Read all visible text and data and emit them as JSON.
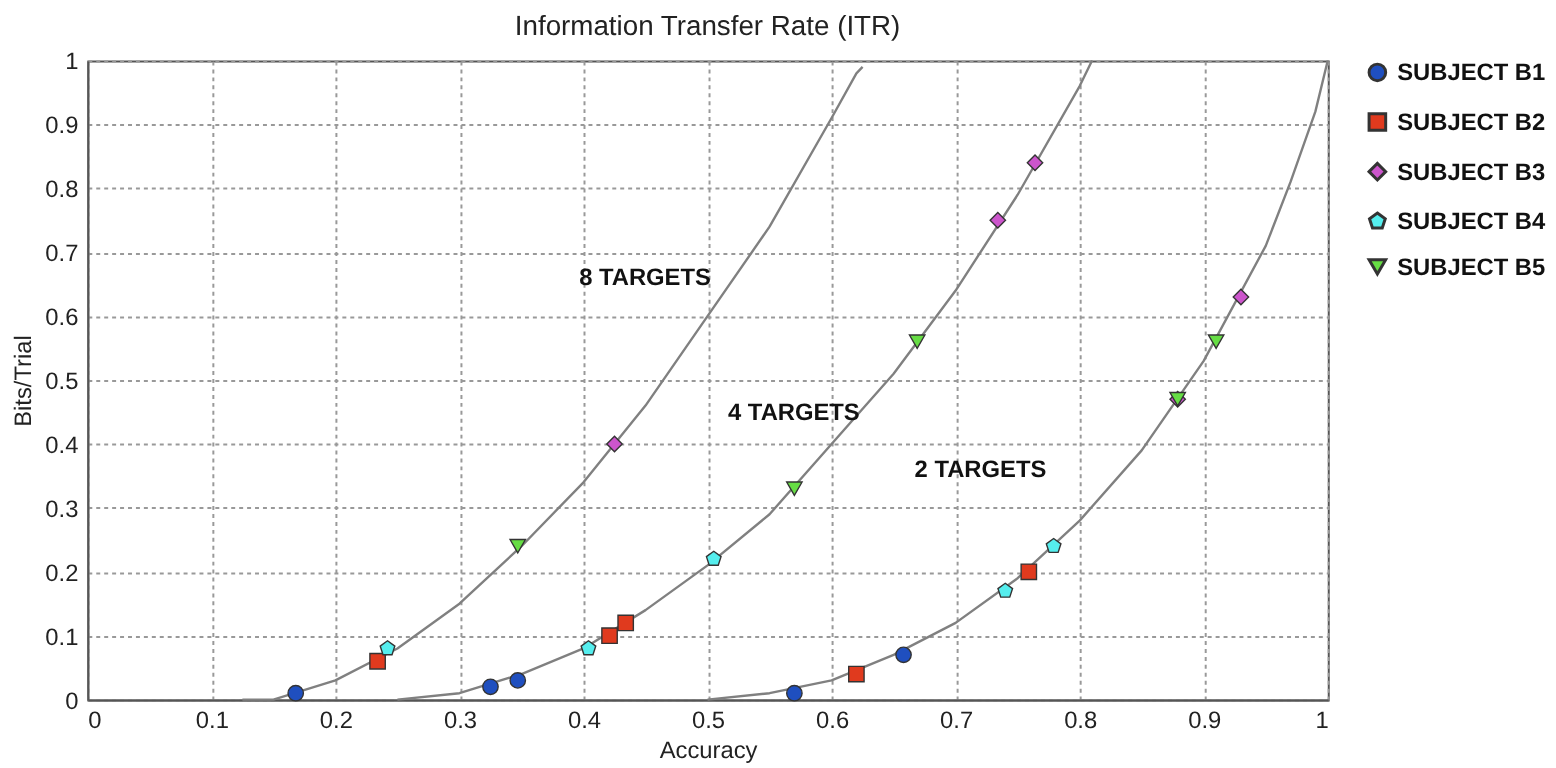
{
  "chart_data": {
    "type": "scatter",
    "title": "Information Transfer Rate (ITR)",
    "xlabel": "Accuracy",
    "ylabel": "Bits/Trial",
    "xlim": [
      0,
      1
    ],
    "ylim": [
      0,
      1
    ],
    "xticks": [
      0,
      0.1,
      0.2,
      0.3,
      0.4,
      0.5,
      0.6,
      0.7,
      0.8,
      0.9,
      1
    ],
    "yticks": [
      0,
      0.1,
      0.2,
      0.3,
      0.4,
      0.5,
      0.6,
      0.7,
      0.8,
      0.9,
      1
    ],
    "grid": true,
    "legend": "right",
    "annotations": [
      "8 TARGETS",
      "4 TARGETS",
      "2 TARGETS"
    ],
    "series": [
      {
        "type": "line",
        "color": "#808080",
        "marker": "none",
        "line_style": "solid",
        "x": [
          0.125,
          0.15,
          0.2,
          0.25,
          0.3,
          0.35,
          0.4,
          0.45,
          0.5,
          0.55,
          0.6,
          0.62,
          0.625
        ],
        "values": [
          0.0,
          0.0,
          0.03,
          0.08,
          0.15,
          0.24,
          0.34,
          0.46,
          0.6,
          0.74,
          0.91,
          0.98,
          0.99
        ]
      },
      {
        "type": "line",
        "color": "#808080",
        "marker": "none",
        "line_style": "solid",
        "x": [
          0.25,
          0.3,
          0.35,
          0.4,
          0.45,
          0.5,
          0.55,
          0.6,
          0.65,
          0.7,
          0.75,
          0.8,
          0.81
        ],
        "values": [
          0.0,
          0.01,
          0.04,
          0.08,
          0.14,
          0.21,
          0.29,
          0.4,
          0.51,
          0.64,
          0.79,
          0.96,
          1.0
        ]
      },
      {
        "type": "line",
        "color": "#808080",
        "marker": "none",
        "line_style": "solid",
        "x": [
          0.5,
          0.55,
          0.6,
          0.65,
          0.7,
          0.75,
          0.8,
          0.85,
          0.9,
          0.95,
          0.97,
          0.99,
          1.0
        ],
        "values": [
          0.0,
          0.01,
          0.03,
          0.07,
          0.12,
          0.19,
          0.28,
          0.39,
          0.53,
          0.71,
          0.81,
          0.92,
          1.0
        ]
      },
      {
        "name": "SUBJECT B1",
        "color": "#1f4fbf",
        "marker": "circle",
        "x": [
          0.168,
          0.325,
          0.347,
          0.57,
          0.658
        ],
        "values": [
          0.01,
          0.02,
          0.03,
          0.01,
          0.07
        ]
      },
      {
        "name": "SUBJECT B2",
        "color": "#e03a1e",
        "marker": "square",
        "x": [
          0.234,
          0.421,
          0.434,
          0.62,
          0.759
        ],
        "values": [
          0.06,
          0.1,
          0.12,
          0.04,
          0.2
        ]
      },
      {
        "name": "SUBJECT B3",
        "color": "#cc55cc",
        "marker": "diamond",
        "x": [
          0.425,
          0.734,
          0.764,
          0.879,
          0.93
        ],
        "values": [
          0.4,
          0.75,
          0.84,
          0.47,
          0.63
        ]
      },
      {
        "name": "SUBJECT B4",
        "color": "#55eeee",
        "x": [
          0.242,
          0.404,
          0.505,
          0.74,
          0.779
        ],
        "values": [
          0.08,
          0.08,
          0.22,
          0.17,
          0.24
        ]
      },
      {
        "name": "SUBJECT B5",
        "color": "#66dd44",
        "marker": "triangle-down",
        "x": [
          0.347,
          0.57,
          0.669,
          0.879,
          0.91
        ],
        "values": [
          0.24,
          0.33,
          0.56,
          0.47,
          0.56
        ]
      }
    ]
  }
}
